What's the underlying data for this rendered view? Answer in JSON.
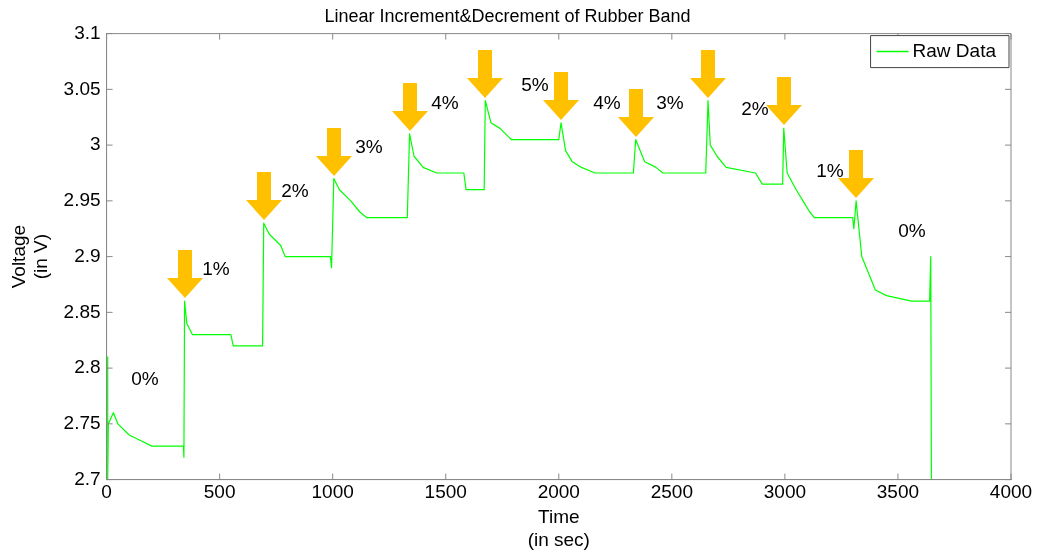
{
  "chart_data": {
    "type": "line",
    "title": "Linear Increment&Decrement of Rubber Band",
    "xlabel": "Time\n(in sec)",
    "ylabel": "Voltage\n(in V)",
    "xlim": [
      0,
      4000
    ],
    "xticks": [
      0,
      500,
      1000,
      1500,
      2000,
      2500,
      3000,
      3500,
      4000
    ],
    "ylim": [
      2.7,
      3.1
    ],
    "yticks": [
      2.7,
      2.75,
      2.8,
      2.85,
      2.9,
      2.95,
      3,
      3.05,
      3.1
    ],
    "grid": false,
    "legend": "top right",
    "marker": "none",
    "line_style": "solid",
    "series": [
      {
        "name": "Raw Data",
        "color": "#00ff00",
        "x": [
          5,
          5,
          8,
          30,
          50,
          100,
          150,
          200,
          340,
          342,
          345,
          355,
          380,
          550,
          560,
          690,
          695,
          720,
          770,
          790,
          990,
          995,
          1005,
          1030,
          1080,
          1120,
          1150,
          1330,
          1340,
          1360,
          1400,
          1460,
          1580,
          1590,
          1670,
          1675,
          1700,
          1740,
          1790,
          2000,
          2010,
          2030,
          2060,
          2100,
          2160,
          2330,
          2340,
          2360,
          2380,
          2430,
          2460,
          2650,
          2660,
          2670,
          2700,
          2740,
          2870,
          2900,
          2990,
          2995,
          3010,
          3050,
          3080,
          3110,
          3130,
          3300,
          3305,
          3315,
          3330,
          3340,
          3370,
          3400,
          3450,
          3560,
          3640,
          3645,
          3648
        ],
        "values": [
          2.81,
          2.7,
          2.75,
          2.76,
          2.75,
          2.74,
          2.735,
          2.73,
          2.73,
          2.72,
          2.86,
          2.84,
          2.83,
          2.83,
          2.82,
          2.82,
          2.93,
          2.92,
          2.91,
          2.9,
          2.9,
          2.89,
          2.97,
          2.96,
          2.95,
          2.94,
          2.935,
          2.935,
          3.01,
          2.99,
          2.98,
          2.975,
          2.975,
          2.96,
          2.96,
          3.04,
          3.02,
          3.015,
          3.005,
          3.005,
          3.02,
          2.995,
          2.985,
          2.98,
          2.975,
          2.975,
          3.005,
          2.995,
          2.985,
          2.98,
          2.975,
          2.975,
          3.04,
          3,
          2.99,
          2.98,
          2.975,
          2.965,
          2.965,
          3.015,
          2.975,
          2.96,
          2.95,
          2.94,
          2.935,
          2.935,
          2.925,
          2.95,
          2.92,
          2.9,
          2.885,
          2.87,
          2.865,
          2.86,
          2.86,
          2.9,
          2.7
        ]
      }
    ],
    "annotations": [
      "0%",
      "1%",
      "2%",
      "3%",
      "4%",
      "5%",
      "4%",
      "3%",
      "2%",
      "1%",
      "0%"
    ]
  }
}
